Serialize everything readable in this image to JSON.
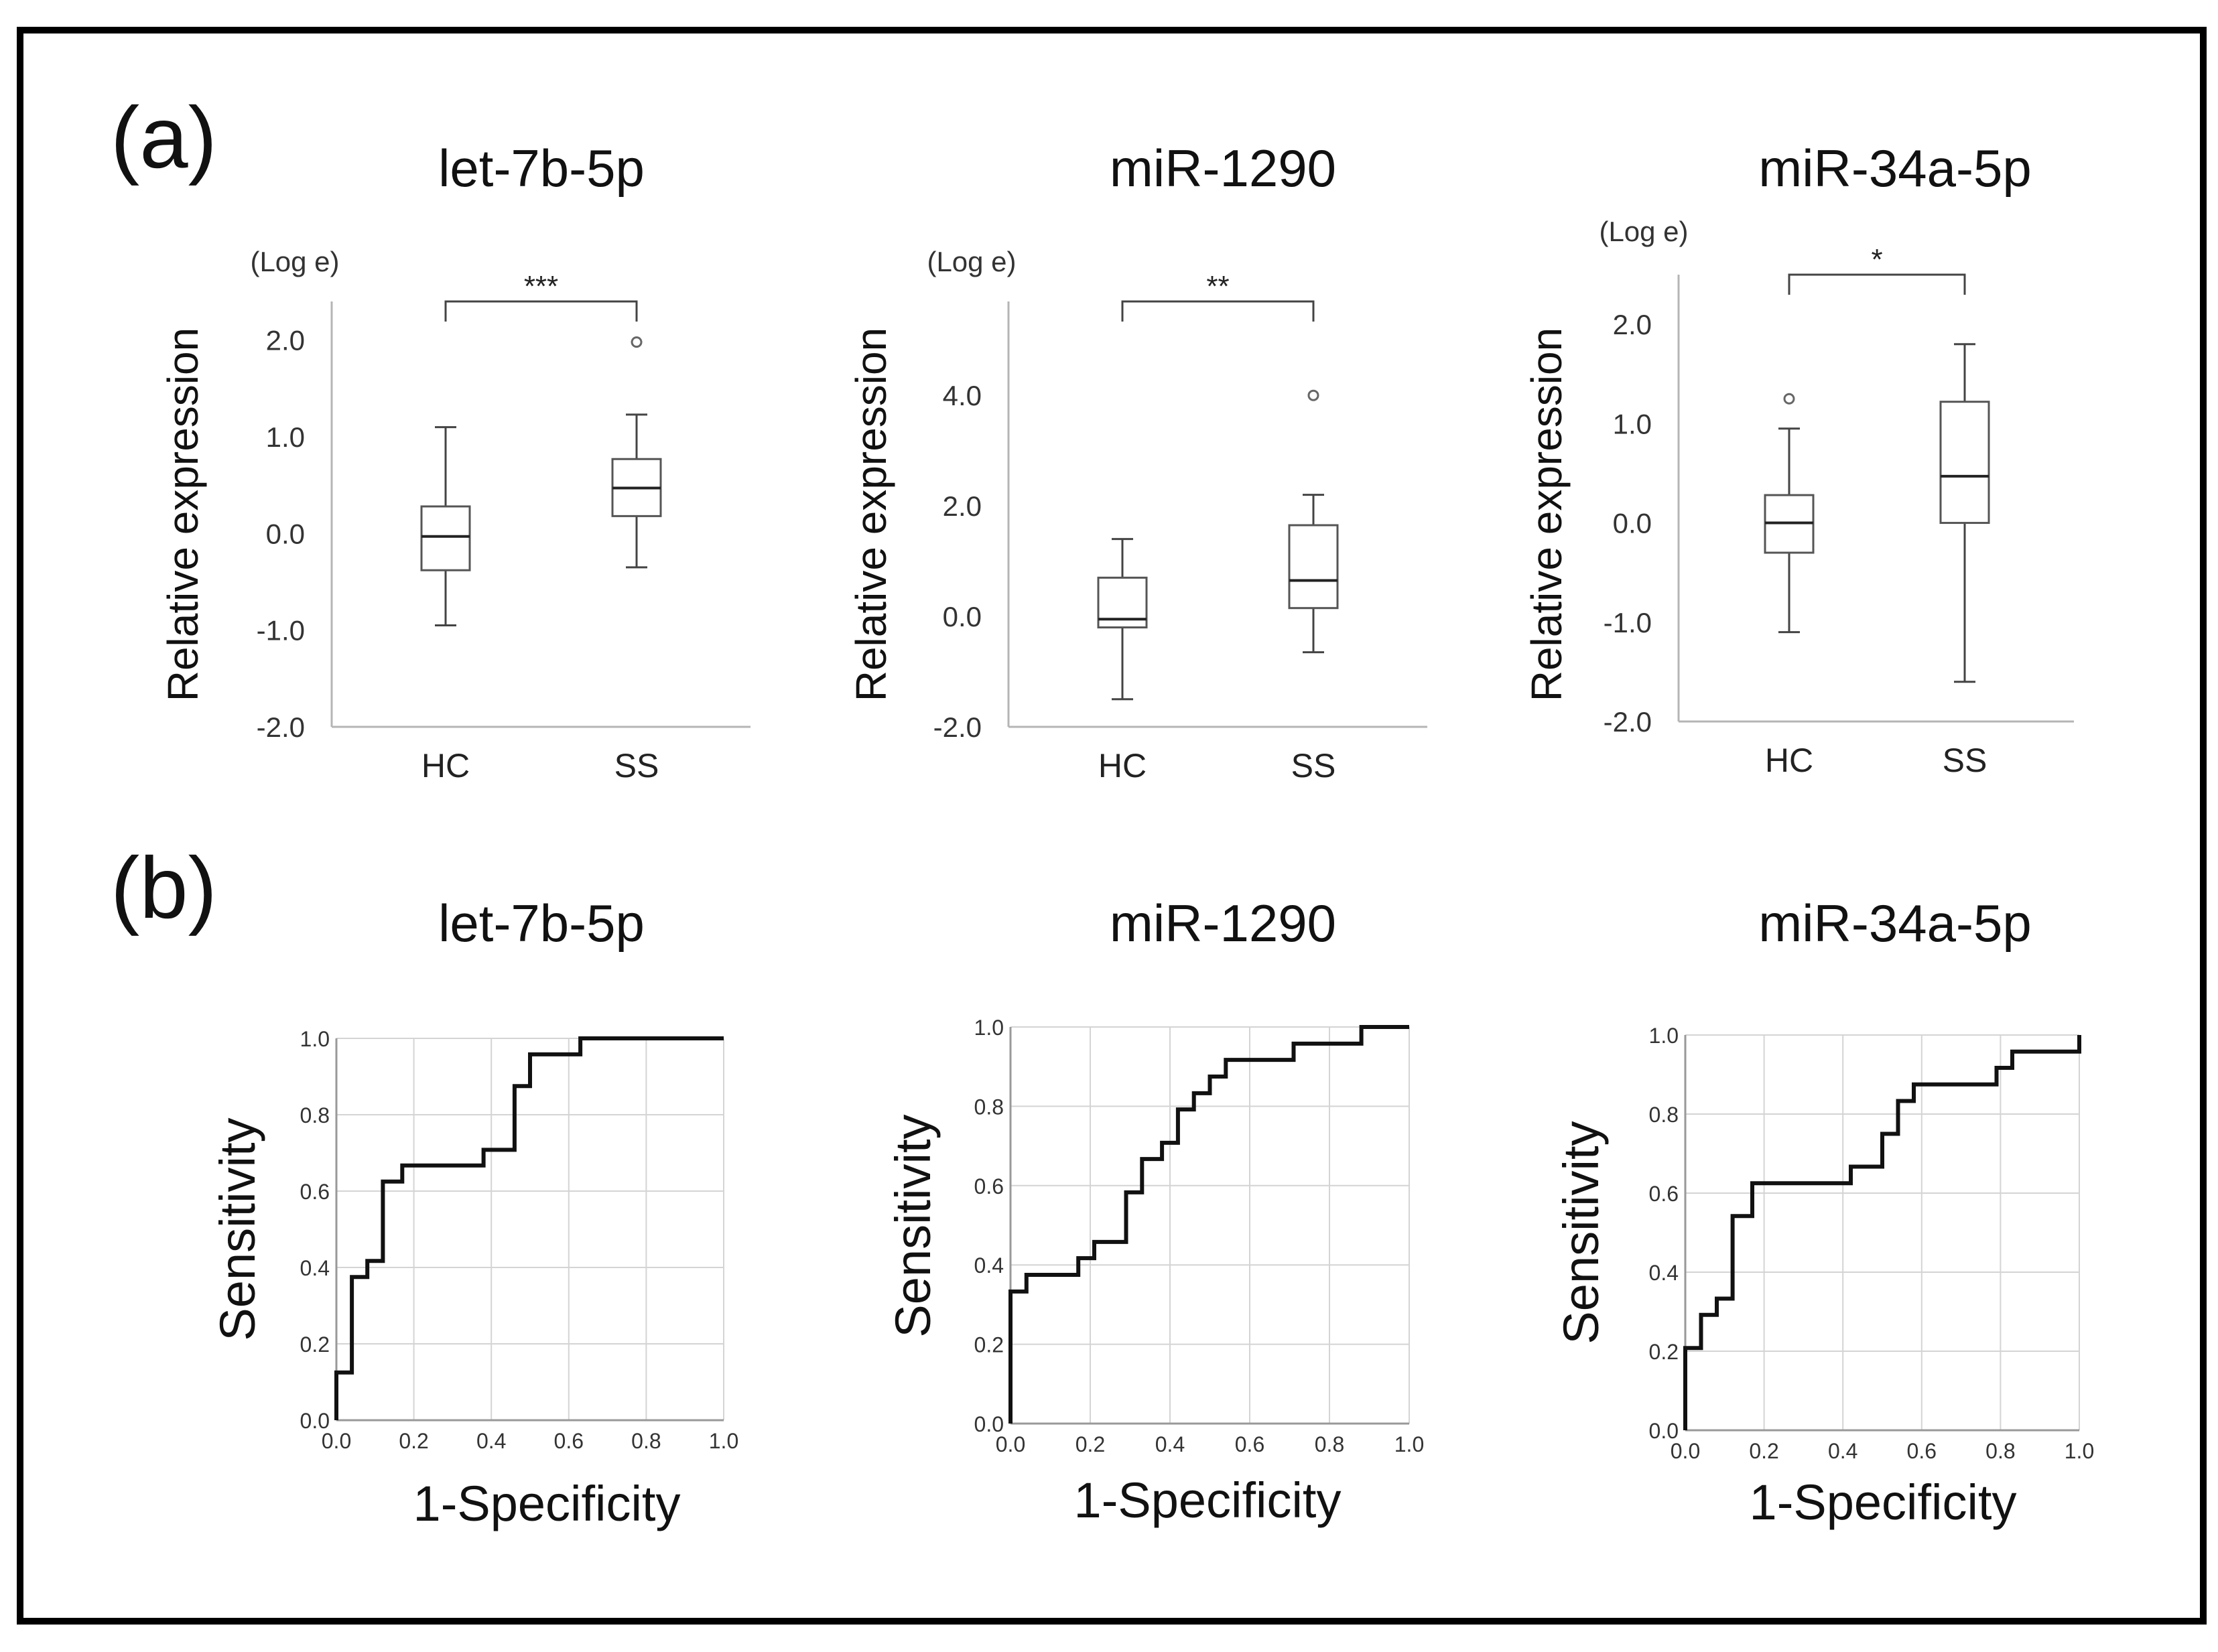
{
  "figure": {
    "panel_labels": [
      "(a)",
      "(b)"
    ]
  },
  "chart_data": [
    {
      "type": "boxplot",
      "panel": "(a)",
      "title": "let-7b-5p",
      "unit_label": "(Log e)",
      "ylabel": "Relative expression",
      "xlabel": "",
      "ylim": [
        -2.0,
        2.4
      ],
      "yticks": [
        -2.0,
        -1.0,
        0.0,
        1.0,
        2.0
      ],
      "ytick_labels": [
        "-2.0",
        "-1.0",
        "0.0",
        "1.0",
        "2.0"
      ],
      "categories": [
        "HC",
        "SS"
      ],
      "boxes": [
        {
          "category": "HC",
          "whisker_low": -0.95,
          "q1": -0.38,
          "median": -0.03,
          "q3": 0.28,
          "whisker_high": 1.1,
          "outliers": []
        },
        {
          "category": "SS",
          "whisker_low": -0.35,
          "q1": 0.18,
          "median": 0.47,
          "q3": 0.77,
          "whisker_high": 1.23,
          "outliers": [
            1.98
          ]
        }
      ],
      "significance": {
        "between": [
          "HC",
          "SS"
        ],
        "label": "***"
      }
    },
    {
      "type": "boxplot",
      "panel": "(a)",
      "title": "miR-1290",
      "unit_label": "(Log e)",
      "ylabel": "Relative expression",
      "xlabel": "",
      "ylim": [
        -2.0,
        5.7
      ],
      "yticks": [
        -2.0,
        0.0,
        2.0,
        4.0
      ],
      "ytick_labels": [
        "-2.0",
        "0.0",
        "2.0",
        "4.0"
      ],
      "categories": [
        "HC",
        "SS"
      ],
      "boxes": [
        {
          "category": "HC",
          "whisker_low": -1.5,
          "q1": -0.2,
          "median": -0.05,
          "q3": 0.7,
          "whisker_high": 1.4,
          "outliers": []
        },
        {
          "category": "SS",
          "whisker_low": -0.65,
          "q1": 0.15,
          "median": 0.65,
          "q3": 1.65,
          "whisker_high": 2.2,
          "outliers": [
            4.0
          ]
        }
      ],
      "significance": {
        "between": [
          "HC",
          "SS"
        ],
        "label": "**"
      }
    },
    {
      "type": "boxplot",
      "panel": "(a)",
      "title": "miR-34a-5p",
      "unit_label": "(Log e)",
      "ylabel": "Relative expression",
      "xlabel": "",
      "ylim": [
        -2.0,
        2.5
      ],
      "yticks": [
        -2.0,
        -1.0,
        0.0,
        1.0,
        2.0
      ],
      "ytick_labels": [
        "-2.0",
        "-1.0",
        "0.0",
        "1.0",
        "2.0"
      ],
      "categories": [
        "HC",
        "SS"
      ],
      "boxes": [
        {
          "category": "HC",
          "whisker_low": -1.1,
          "q1": -0.3,
          "median": 0.0,
          "q3": 0.28,
          "whisker_high": 0.95,
          "outliers": [
            1.25
          ]
        },
        {
          "category": "SS",
          "whisker_low": -1.6,
          "q1": 0.0,
          "median": 0.47,
          "q3": 1.22,
          "whisker_high": 1.8,
          "outliers": []
        }
      ],
      "significance": {
        "between": [
          "HC",
          "SS"
        ],
        "label": "*"
      }
    },
    {
      "type": "line",
      "subtype": "roc",
      "panel": "(b)",
      "title": "let-7b-5p",
      "xlabel": "1-Specificity",
      "ylabel": "Sensitivity",
      "xlim": [
        0.0,
        1.0
      ],
      "ylim": [
        0.0,
        1.0
      ],
      "grid": true,
      "xtick_labels": [
        "0.0",
        "0.2",
        "0.4",
        "0.6",
        "0.8",
        "1.0"
      ],
      "ytick_labels": [
        "0.0",
        "0.2",
        "0.4",
        "0.6",
        "0.8",
        "1.0"
      ],
      "x": [
        0,
        0,
        0.04,
        0.04,
        0.08,
        0.08,
        0.12,
        0.12,
        0.17,
        0.17,
        0.38,
        0.38,
        0.46,
        0.46,
        0.5,
        0.5,
        0.63,
        0.63,
        1.0
      ],
      "y": [
        0,
        0.125,
        0.125,
        0.375,
        0.375,
        0.417,
        0.417,
        0.625,
        0.625,
        0.667,
        0.667,
        0.708,
        0.708,
        0.875,
        0.875,
        0.958,
        0.958,
        1.0,
        1.0
      ]
    },
    {
      "type": "line",
      "subtype": "roc",
      "panel": "(b)",
      "title": "miR-1290",
      "xlabel": "1-Specificity",
      "ylabel": "Sensitivity",
      "xlim": [
        0.0,
        1.0
      ],
      "ylim": [
        0.0,
        1.0
      ],
      "grid": true,
      "xtick_labels": [
        "0.0",
        "0.2",
        "0.4",
        "0.6",
        "0.8",
        "1.0"
      ],
      "ytick_labels": [
        "0.0",
        "0.2",
        "0.4",
        "0.6",
        "0.8",
        "1.0"
      ],
      "x": [
        0,
        0,
        0.04,
        0.04,
        0.17,
        0.17,
        0.21,
        0.21,
        0.29,
        0.29,
        0.33,
        0.33,
        0.38,
        0.38,
        0.42,
        0.42,
        0.46,
        0.46,
        0.5,
        0.5,
        0.54,
        0.54,
        0.71,
        0.71,
        0.88,
        0.88,
        1.0
      ],
      "y": [
        0,
        0.333,
        0.333,
        0.375,
        0.375,
        0.417,
        0.417,
        0.458,
        0.458,
        0.583,
        0.583,
        0.667,
        0.667,
        0.708,
        0.708,
        0.792,
        0.792,
        0.833,
        0.833,
        0.875,
        0.875,
        0.917,
        0.917,
        0.958,
        0.958,
        1.0,
        1.0
      ]
    },
    {
      "type": "line",
      "subtype": "roc",
      "panel": "(b)",
      "title": "miR-34a-5p",
      "xlabel": "1-Specificity",
      "ylabel": "Sensitivity",
      "xlim": [
        0.0,
        1.0
      ],
      "ylim": [
        0.0,
        1.0
      ],
      "grid": true,
      "xtick_labels": [
        "0.0",
        "0.2",
        "0.4",
        "0.6",
        "0.8",
        "1.0"
      ],
      "ytick_labels": [
        "0.0",
        "0.2",
        "0.4",
        "0.6",
        "0.8",
        "1.0"
      ],
      "x": [
        0,
        0,
        0.04,
        0.04,
        0.08,
        0.08,
        0.12,
        0.12,
        0.17,
        0.17,
        0.42,
        0.42,
        0.5,
        0.5,
        0.54,
        0.54,
        0.58,
        0.58,
        0.79,
        0.79,
        0.83,
        0.83,
        1.0,
        1.0
      ],
      "y": [
        0,
        0.208,
        0.208,
        0.292,
        0.292,
        0.333,
        0.333,
        0.542,
        0.542,
        0.625,
        0.625,
        0.667,
        0.667,
        0.75,
        0.75,
        0.833,
        0.833,
        0.875,
        0.875,
        0.917,
        0.917,
        0.958,
        0.958,
        1.0
      ]
    }
  ]
}
